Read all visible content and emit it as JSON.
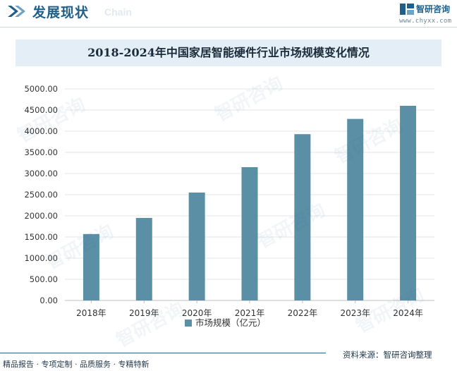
{
  "header": {
    "title": "发展现状",
    "subtitle": "Chain",
    "logo_name": "智研咨询",
    "logo_url": "www.chyxx.com"
  },
  "footer": {
    "left_text": "精品报告 · 专项定制 · 品质服务 · 专精特新",
    "source": "资料来源：智研咨询整理"
  },
  "watermark_text": "智研咨询",
  "colors": {
    "bar": "#5b8fa6",
    "axis": "#bfbfbf",
    "grid": "#e6e6e6",
    "accent": "#1f5f8a"
  },
  "chart_data": {
    "type": "bar",
    "title": "2018-2024年中国家居智能硬件行业市场规模变化情况",
    "categories": [
      "2018年",
      "2019年",
      "2020年",
      "2021年",
      "2022年",
      "2023年",
      "2024年"
    ],
    "series": [
      {
        "name": "市场规模（亿元）",
        "values": [
          1570,
          1950,
          2550,
          3150,
          3930,
          4290,
          4600
        ]
      }
    ],
    "yticks": [
      "0.00",
      "500.00",
      "1000.00",
      "1500.00",
      "2000.00",
      "2500.00",
      "3000.00",
      "3500.00",
      "4000.00",
      "4500.00",
      "5000.00"
    ],
    "ylim": [
      0,
      5000
    ],
    "xlabel": "",
    "ylabel": "",
    "legend_position": "bottom-center",
    "grid": true
  }
}
